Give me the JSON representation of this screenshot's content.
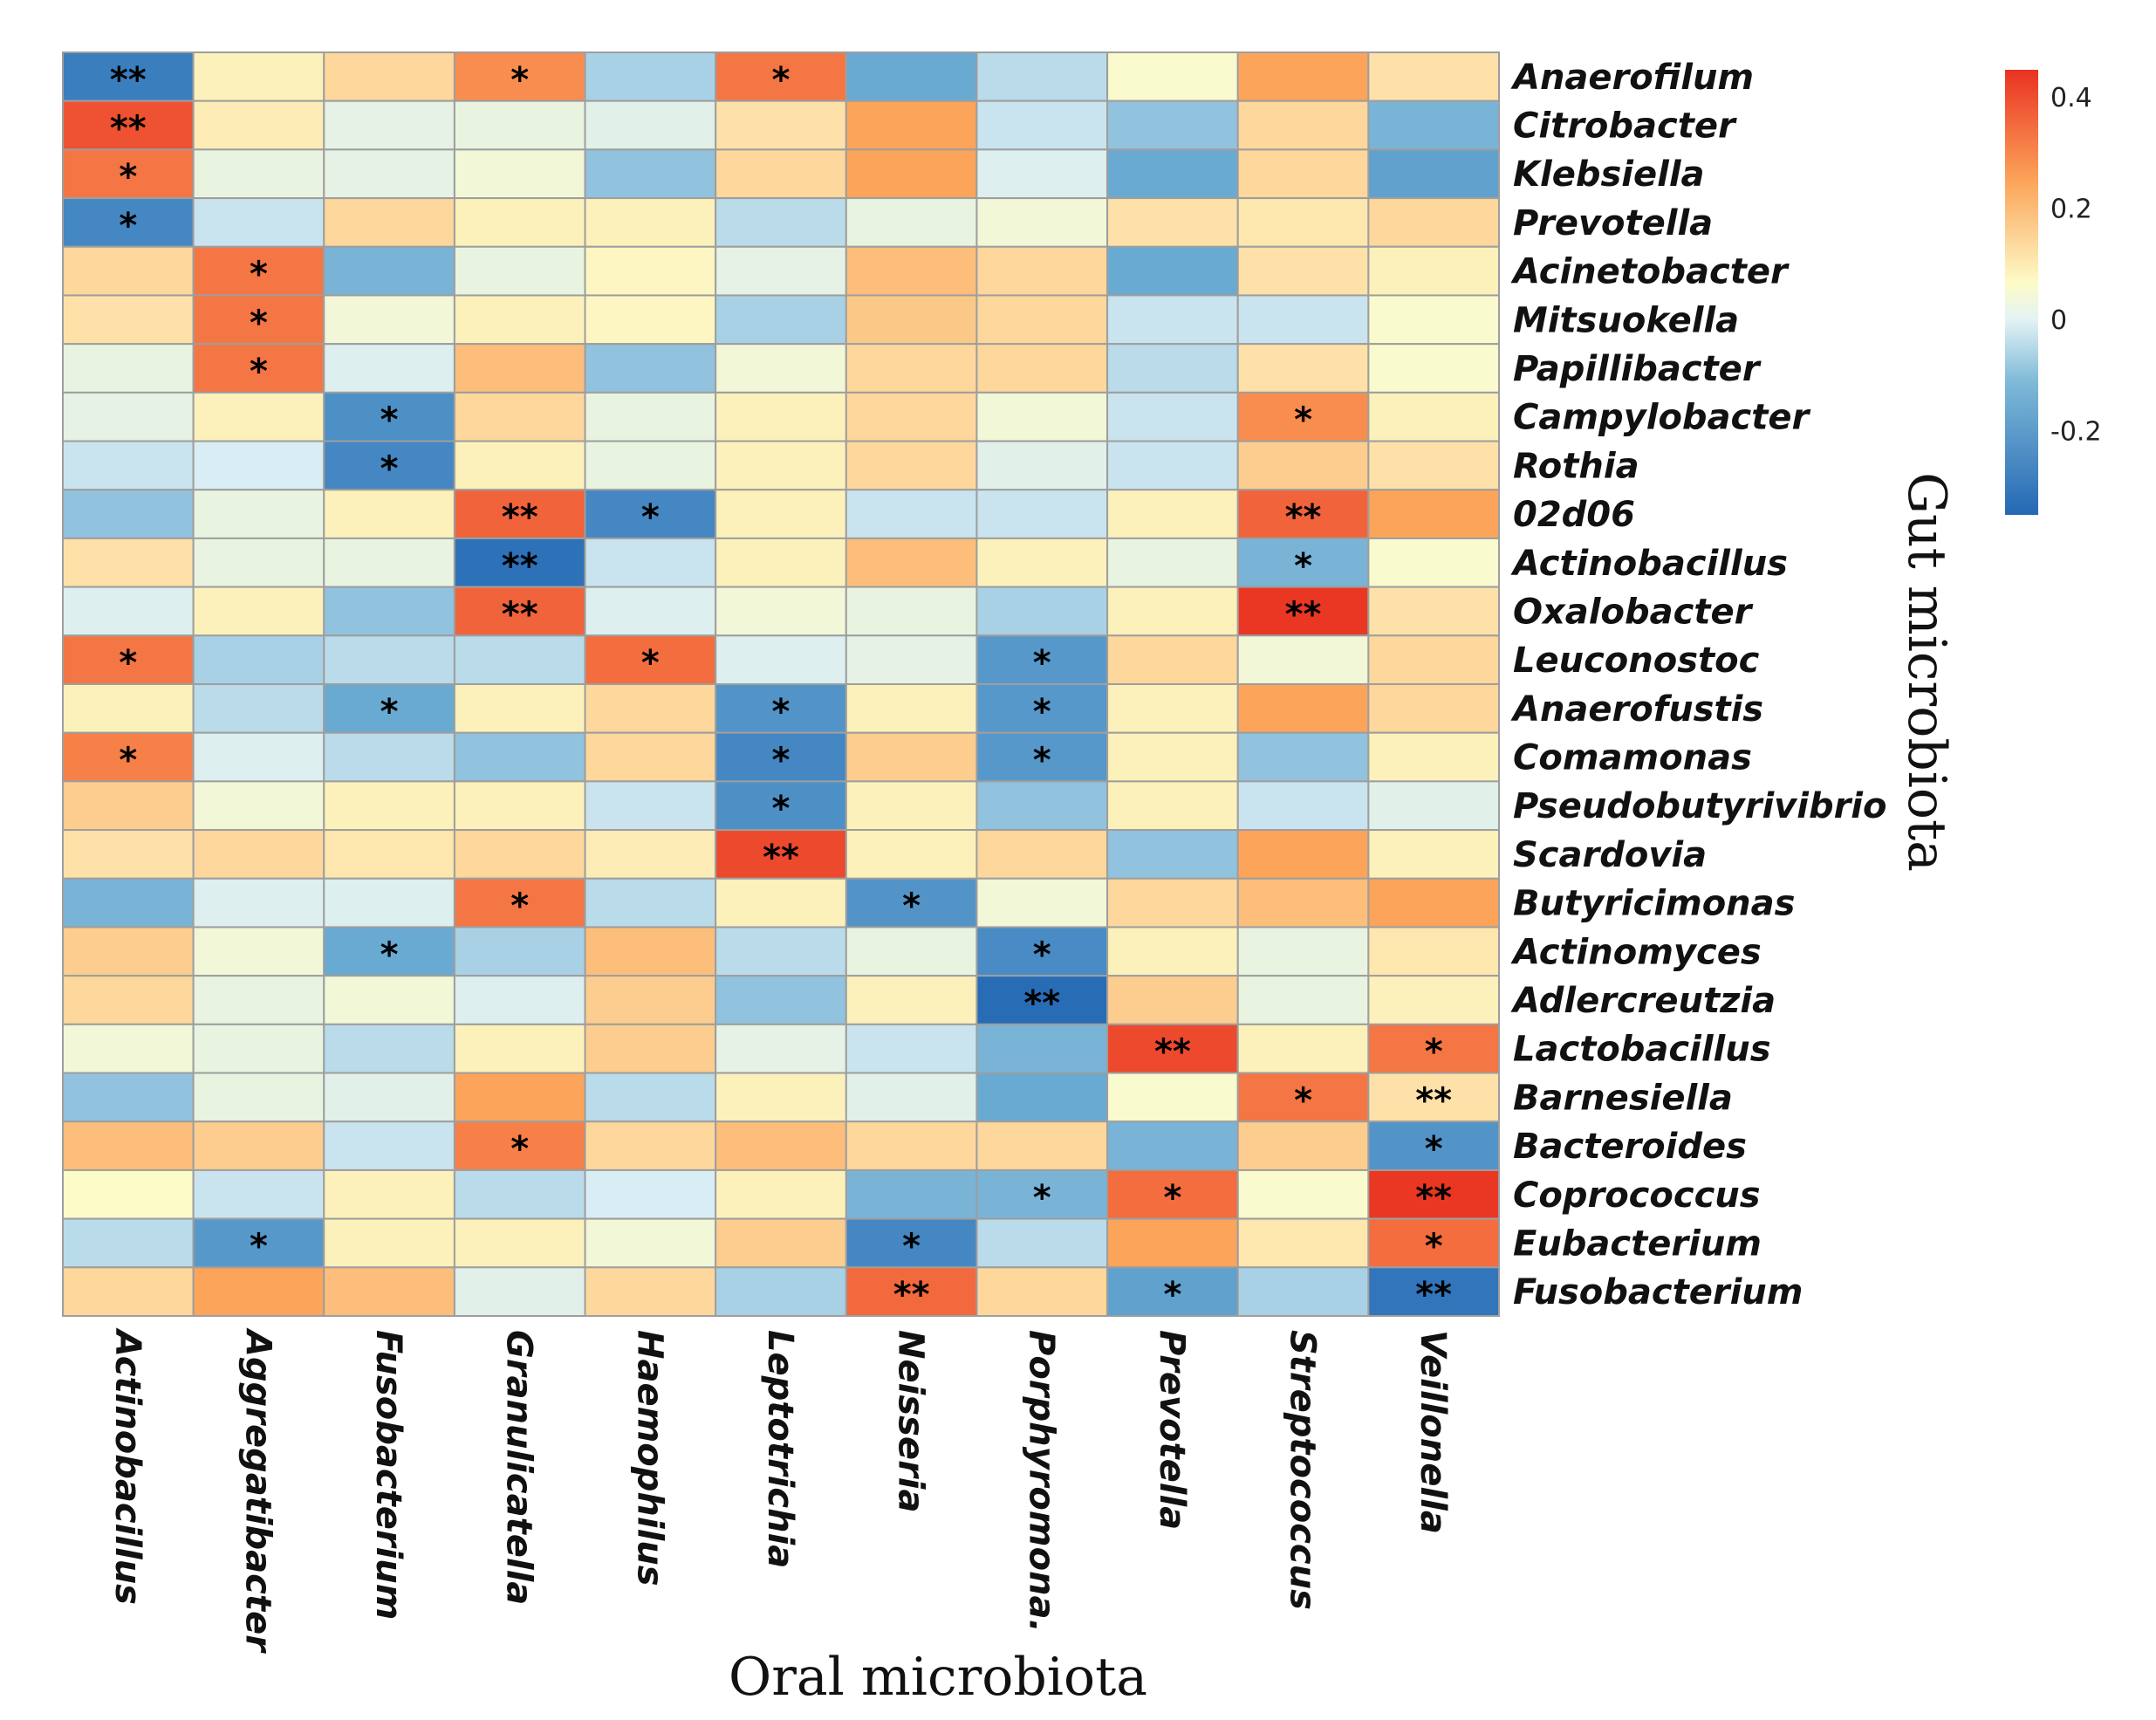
{
  "chart_data": {
    "type": "heatmap",
    "xlabel": "Oral microbiota",
    "ylabel": "Gut microbiota",
    "columns": [
      "Actinobacillus",
      "Aggregatibacter",
      "Fusobacterium",
      "Granulicatella",
      "Haemophilus",
      "Leptotrichia",
      "Neisseria",
      "Porphyromona.",
      "Prevotella",
      "Streptococcus",
      "Veillonella"
    ],
    "rows": [
      "Anaerofilum",
      "Citrobacter",
      "Klebsiella",
      "Prevotella",
      "Acinetobacter",
      "Mitsuokella",
      "Papillibacter",
      "Campylobacter",
      "Rothia",
      "02d06",
      "Actinobacillus",
      "Oxalobacter",
      "Leuconostoc",
      "Anaerofustis",
      "Comamonas",
      "Pseudobutyrivibrio",
      "Scardovia",
      "Butyricimonas",
      "Actinomyces",
      "Adlercreutzia",
      "Lactobacillus",
      "Barnesiella",
      "Bacteroides",
      "Coprococcus",
      "Eubacterium",
      "Fusobacterium"
    ],
    "values": [
      [
        -0.3,
        0.05,
        0.1,
        0.25,
        -0.12,
        0.3,
        -0.2,
        -0.1,
        0.02,
        0.2,
        0.08
      ],
      [
        0.38,
        0.06,
        -0.03,
        -0.02,
        -0.04,
        0.08,
        0.2,
        -0.08,
        -0.15,
        0.1,
        -0.18
      ],
      [
        0.3,
        -0.02,
        -0.03,
        0.0,
        -0.15,
        0.1,
        0.2,
        -0.05,
        -0.2,
        0.1,
        -0.22
      ],
      [
        -0.28,
        -0.08,
        0.1,
        0.05,
        0.05,
        -0.1,
        -0.02,
        0.0,
        0.08,
        0.07,
        0.1
      ],
      [
        0.1,
        0.3,
        -0.18,
        -0.02,
        0.04,
        -0.03,
        0.15,
        0.1,
        -0.2,
        0.08,
        0.05
      ],
      [
        0.08,
        0.3,
        0.0,
        0.05,
        0.04,
        -0.12,
        0.13,
        0.1,
        -0.08,
        -0.08,
        0.02
      ],
      [
        -0.02,
        0.3,
        -0.05,
        0.15,
        -0.15,
        0.0,
        0.1,
        0.1,
        -0.1,
        0.08,
        0.02
      ],
      [
        -0.03,
        0.05,
        -0.26,
        0.1,
        -0.02,
        0.05,
        0.1,
        0.0,
        -0.08,
        0.25,
        0.05
      ],
      [
        -0.08,
        -0.06,
        -0.28,
        0.05,
        -0.02,
        0.05,
        0.1,
        -0.04,
        -0.08,
        0.12,
        0.08
      ],
      [
        -0.15,
        -0.02,
        0.05,
        0.34,
        -0.28,
        0.05,
        -0.08,
        -0.08,
        0.05,
        0.34,
        0.2
      ],
      [
        0.08,
        -0.02,
        -0.02,
        -0.33,
        -0.08,
        0.05,
        0.15,
        0.05,
        -0.02,
        -0.18,
        0.02
      ],
      [
        -0.05,
        0.05,
        -0.15,
        0.34,
        -0.05,
        0.0,
        -0.02,
        -0.12,
        0.05,
        0.44,
        0.08
      ],
      [
        0.3,
        -0.12,
        -0.1,
        -0.1,
        0.32,
        -0.05,
        -0.03,
        -0.24,
        0.1,
        0.0,
        0.1
      ],
      [
        0.05,
        -0.1,
        -0.2,
        0.05,
        0.1,
        -0.25,
        0.05,
        -0.24,
        0.05,
        0.2,
        0.1
      ],
      [
        0.28,
        -0.05,
        -0.1,
        -0.15,
        0.1,
        -0.28,
        0.12,
        -0.24,
        0.05,
        -0.15,
        0.05
      ],
      [
        0.12,
        0.0,
        0.05,
        0.05,
        -0.08,
        -0.26,
        0.05,
        -0.15,
        0.05,
        -0.08,
        -0.04
      ],
      [
        0.08,
        0.1,
        0.07,
        0.1,
        0.06,
        0.4,
        0.05,
        0.1,
        -0.15,
        0.2,
        0.05
      ],
      [
        -0.18,
        -0.05,
        -0.05,
        0.3,
        -0.1,
        0.05,
        -0.25,
        0.0,
        0.1,
        0.15,
        0.2
      ],
      [
        0.12,
        0.0,
        -0.2,
        -0.12,
        0.15,
        -0.1,
        -0.02,
        -0.27,
        0.05,
        -0.02,
        0.07
      ],
      [
        0.1,
        -0.02,
        0.0,
        -0.05,
        0.12,
        -0.15,
        0.05,
        -0.34,
        0.12,
        -0.02,
        0.05
      ],
      [
        0.0,
        -0.02,
        -0.1,
        0.05,
        0.12,
        -0.03,
        -0.08,
        -0.18,
        0.4,
        0.05,
        0.3
      ],
      [
        -0.15,
        -0.02,
        -0.04,
        0.2,
        -0.1,
        0.05,
        -0.04,
        -0.2,
        0.02,
        0.3,
        0.08
      ],
      [
        0.15,
        0.12,
        -0.08,
        0.28,
        0.1,
        0.15,
        0.1,
        0.1,
        -0.18,
        0.12,
        -0.25
      ],
      [
        0.03,
        -0.08,
        0.05,
        -0.1,
        -0.06,
        0.05,
        -0.18,
        -0.18,
        0.32,
        0.02,
        0.44
      ],
      [
        -0.1,
        -0.24,
        0.05,
        0.05,
        0.0,
        0.12,
        -0.28,
        -0.1,
        0.2,
        0.07,
        0.32
      ],
      [
        0.1,
        0.2,
        0.15,
        -0.04,
        0.1,
        -0.12,
        0.33,
        0.1,
        -0.22,
        -0.12,
        -0.32
      ]
    ],
    "significance": [
      [
        "**",
        "",
        "",
        "*",
        "",
        "*",
        "",
        "",
        "",
        "",
        ""
      ],
      [
        "**",
        "",
        "",
        "",
        "",
        "",
        "",
        "",
        "",
        "",
        ""
      ],
      [
        "*",
        "",
        "",
        "",
        "",
        "",
        "",
        "",
        "",
        "",
        ""
      ],
      [
        "*",
        "",
        "",
        "",
        "",
        "",
        "",
        "",
        "",
        "",
        ""
      ],
      [
        "",
        "*",
        "",
        "",
        "",
        "",
        "",
        "",
        "",
        "",
        ""
      ],
      [
        "",
        "*",
        "",
        "",
        "",
        "",
        "",
        "",
        "",
        "",
        ""
      ],
      [
        "",
        "*",
        "",
        "",
        "",
        "",
        "",
        "",
        "",
        "",
        ""
      ],
      [
        "",
        "",
        "*",
        "",
        "",
        "",
        "",
        "",
        "",
        "*",
        ""
      ],
      [
        "",
        "",
        "*",
        "",
        "",
        "",
        "",
        "",
        "",
        "",
        ""
      ],
      [
        "",
        "",
        "",
        "**",
        "*",
        "",
        "",
        "",
        "",
        "**",
        ""
      ],
      [
        "",
        "",
        "",
        "**",
        "",
        "",
        "",
        "",
        "",
        "*",
        ""
      ],
      [
        "",
        "",
        "",
        "**",
        "",
        "",
        "",
        "",
        "",
        "**",
        ""
      ],
      [
        "*",
        "",
        "",
        "",
        "*",
        "",
        "",
        "*",
        "",
        "",
        ""
      ],
      [
        "",
        "",
        "*",
        "",
        "",
        "*",
        "",
        "*",
        "",
        "",
        ""
      ],
      [
        "*",
        "",
        "",
        "",
        "",
        "*",
        "",
        "*",
        "",
        "",
        ""
      ],
      [
        "",
        "",
        "",
        "",
        "",
        "*",
        "",
        "",
        "",
        "",
        ""
      ],
      [
        "",
        "",
        "",
        "",
        "",
        "**",
        "",
        "",
        "",
        "",
        ""
      ],
      [
        "",
        "",
        "",
        "*",
        "",
        "",
        "*",
        "",
        "",
        "",
        ""
      ],
      [
        "",
        "",
        "*",
        "",
        "",
        "",
        "",
        "*",
        "",
        "",
        ""
      ],
      [
        "",
        "",
        "",
        "",
        "",
        "",
        "",
        "**",
        "",
        "",
        ""
      ],
      [
        "",
        "",
        "",
        "",
        "",
        "",
        "",
        "",
        "**",
        "",
        "*"
      ],
      [
        "",
        "",
        "",
        "",
        "",
        "",
        "",
        "",
        "",
        "*",
        "**"
      ],
      [
        "",
        "",
        "",
        "*",
        "",
        "",
        "",
        "",
        "",
        "",
        "*"
      ],
      [
        "",
        "",
        "",
        "",
        "",
        "",
        "",
        "*",
        "*",
        "",
        "**"
      ],
      [
        "",
        "*",
        "",
        "",
        "",
        "",
        "*",
        "",
        "",
        "",
        "*"
      ],
      [
        "",
        "",
        "",
        "",
        "",
        "",
        "**",
        "",
        "*",
        "",
        "**"
      ]
    ],
    "value_range": [
      -0.35,
      0.45
    ],
    "legend": {
      "placement": "top-right",
      "ticks": [
        0.4,
        0.2,
        0,
        -0.2
      ],
      "tick_labels": [
        "0.4",
        "0.2",
        "0",
        "-0.2"
      ]
    },
    "colors": {
      "low": "#2468b4",
      "mid_low": "#d9eef4",
      "mid": "#fdfbc8",
      "mid_high": "#fca45a",
      "high": "#e93222",
      "cell_border": "#9e9e9e"
    }
  }
}
